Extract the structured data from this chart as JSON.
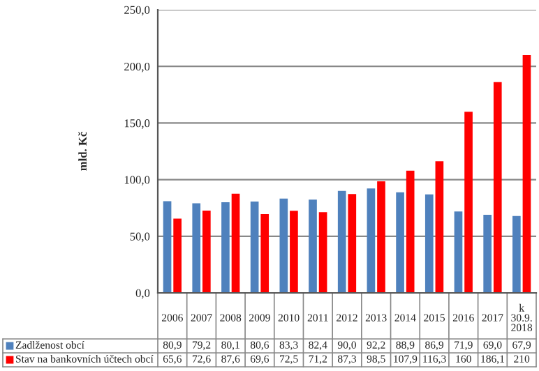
{
  "chart_data": {
    "type": "bar",
    "ylabel": "mld. Kč",
    "categories": [
      "2006",
      "2007",
      "2008",
      "2009",
      "2010",
      "2011",
      "2012",
      "2013",
      "2014",
      "2015",
      "2016",
      "2017",
      "k\n30.9.\n2018"
    ],
    "series": [
      {
        "name": "Zadlženost obcí",
        "color": "#4f81bd",
        "values": [
          80.9,
          79.2,
          80.1,
          80.6,
          83.3,
          82.4,
          90.0,
          92.2,
          88.9,
          86.9,
          71.9,
          69.0,
          67.9
        ],
        "value_labels": [
          "80,9",
          "79,2",
          "80,1",
          "80,6",
          "83,3",
          "82,4",
          "90,0",
          "92,2",
          "88,9",
          "86,9",
          "71,9",
          "69,0",
          "67,9"
        ]
      },
      {
        "name": "Stav na bankovních účtech obcí",
        "color": "#ff0000",
        "values": [
          65.6,
          72.6,
          87.6,
          69.6,
          72.5,
          71.2,
          87.3,
          98.5,
          107.9,
          116.3,
          160,
          186.1,
          210
        ],
        "value_labels": [
          "65,6",
          "72,6",
          "87,6",
          "69,6",
          "72,5",
          "71,2",
          "87,3",
          "98,5",
          "107,9",
          "116,3",
          "160",
          "186,1",
          "210"
        ]
      }
    ],
    "ylim": [
      0,
      250
    ],
    "yticks": [
      {
        "value": 0,
        "label": "0,0"
      },
      {
        "value": 50,
        "label": "50,0"
      },
      {
        "value": 100,
        "label": "100,0"
      },
      {
        "value": 150,
        "label": "150,0"
      },
      {
        "value": 200,
        "label": "200,0"
      },
      {
        "value": 250,
        "label": "250,0"
      }
    ],
    "grid": "y",
    "legend": "bottom"
  }
}
